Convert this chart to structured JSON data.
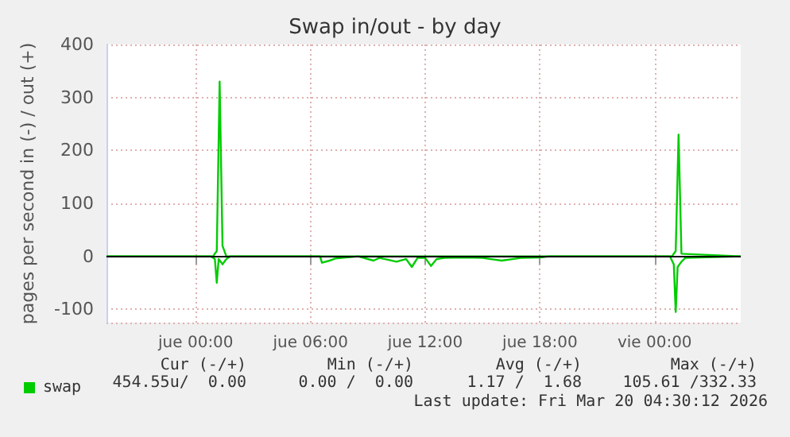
{
  "chart_data": {
    "type": "line",
    "title": "Swap in/out - by day",
    "ylabel": "pages per second in (-) / out (+)",
    "xlim": [
      "2026-03-18T19:20",
      "2026-03-20T04:30"
    ],
    "xticks": [
      {
        "value": "2026-03-19T00:00",
        "label": "jue 00:00"
      },
      {
        "value": "2026-03-19T06:00",
        "label": "jue 06:00"
      },
      {
        "value": "2026-03-19T12:00",
        "label": "jue 12:00"
      },
      {
        "value": "2026-03-19T18:00",
        "label": "jue 18:00"
      },
      {
        "value": "2026-03-20T00:00",
        "label": "vie 00:00"
      }
    ],
    "ylim": [
      -125,
      400
    ],
    "yticks": [
      -100,
      0,
      100,
      200,
      300,
      400
    ],
    "grid": true,
    "legend": "bottom left",
    "marker": "none",
    "line_style": "solid",
    "ref_lines": [
      {
        "axis": "y",
        "value": 0,
        "color": "#000000"
      }
    ],
    "series": [
      {
        "name": "swap",
        "color": "#00cc00",
        "x": [
          "2026-03-18T19:20",
          "2026-03-19T00:54",
          "2026-03-19T01:06",
          "2026-03-19T01:15",
          "2026-03-19T01:24",
          "2026-03-19T01:36",
          "2026-03-19T02:00",
          "2026-03-20T00:54",
          "2026-03-20T01:06",
          "2026-03-20T01:15",
          "2026-03-20T01:24",
          "2026-03-20T04:30"
        ],
        "values": [
          0,
          0,
          10,
          330,
          20,
          0,
          0,
          0,
          10,
          230,
          5,
          0
        ]
      },
      {
        "color": "#00cc00",
        "x": [
          "2026-03-18T19:20",
          "2026-03-19T00:48",
          "2026-03-19T01:00",
          "2026-03-19T01:06",
          "2026-03-19T01:12",
          "2026-03-19T01:24",
          "2026-03-19T01:36",
          "2026-03-19T01:48",
          "2026-03-19T06:30",
          "2026-03-19T06:36",
          "2026-03-19T07:00",
          "2026-03-19T07:18",
          "2026-03-19T08:30",
          "2026-03-19T09:00",
          "2026-03-19T09:18",
          "2026-03-19T09:36",
          "2026-03-19T10:00",
          "2026-03-19T10:30",
          "2026-03-19T11:00",
          "2026-03-19T11:18",
          "2026-03-19T11:36",
          "2026-03-19T12:00",
          "2026-03-19T12:18",
          "2026-03-19T12:36",
          "2026-03-19T13:00",
          "2026-03-19T14:00",
          "2026-03-19T15:00",
          "2026-03-19T16:00",
          "2026-03-19T17:00",
          "2026-03-19T18:00",
          "2026-03-19T18:30",
          "2026-03-20T00:48",
          "2026-03-20T01:00",
          "2026-03-20T01:06",
          "2026-03-20T01:12",
          "2026-03-20T01:24",
          "2026-03-20T01:36",
          "2026-03-20T04:30"
        ],
        "values": [
          0,
          0,
          -5,
          -50,
          -5,
          -15,
          -5,
          0,
          0,
          -12,
          -8,
          -4,
          0,
          -5,
          -8,
          -3,
          -6,
          -10,
          -5,
          -20,
          -3,
          -3,
          -18,
          -5,
          -3,
          -2,
          -3,
          -8,
          -3,
          -2,
          0,
          0,
          -15,
          -105,
          -20,
          -10,
          -3,
          0
        ]
      }
    ],
    "annotations": [
      "Cur (-/+)",
      "Min (-/+)",
      "Avg (-/+)",
      "Max (-/+)",
      "454.55u/  0.00",
      "0.00 /  0.00",
      "1.17 /  1.68",
      "105.61 /332.33",
      "Last update: Fri Mar 20 04:30:12 2026"
    ]
  }
}
